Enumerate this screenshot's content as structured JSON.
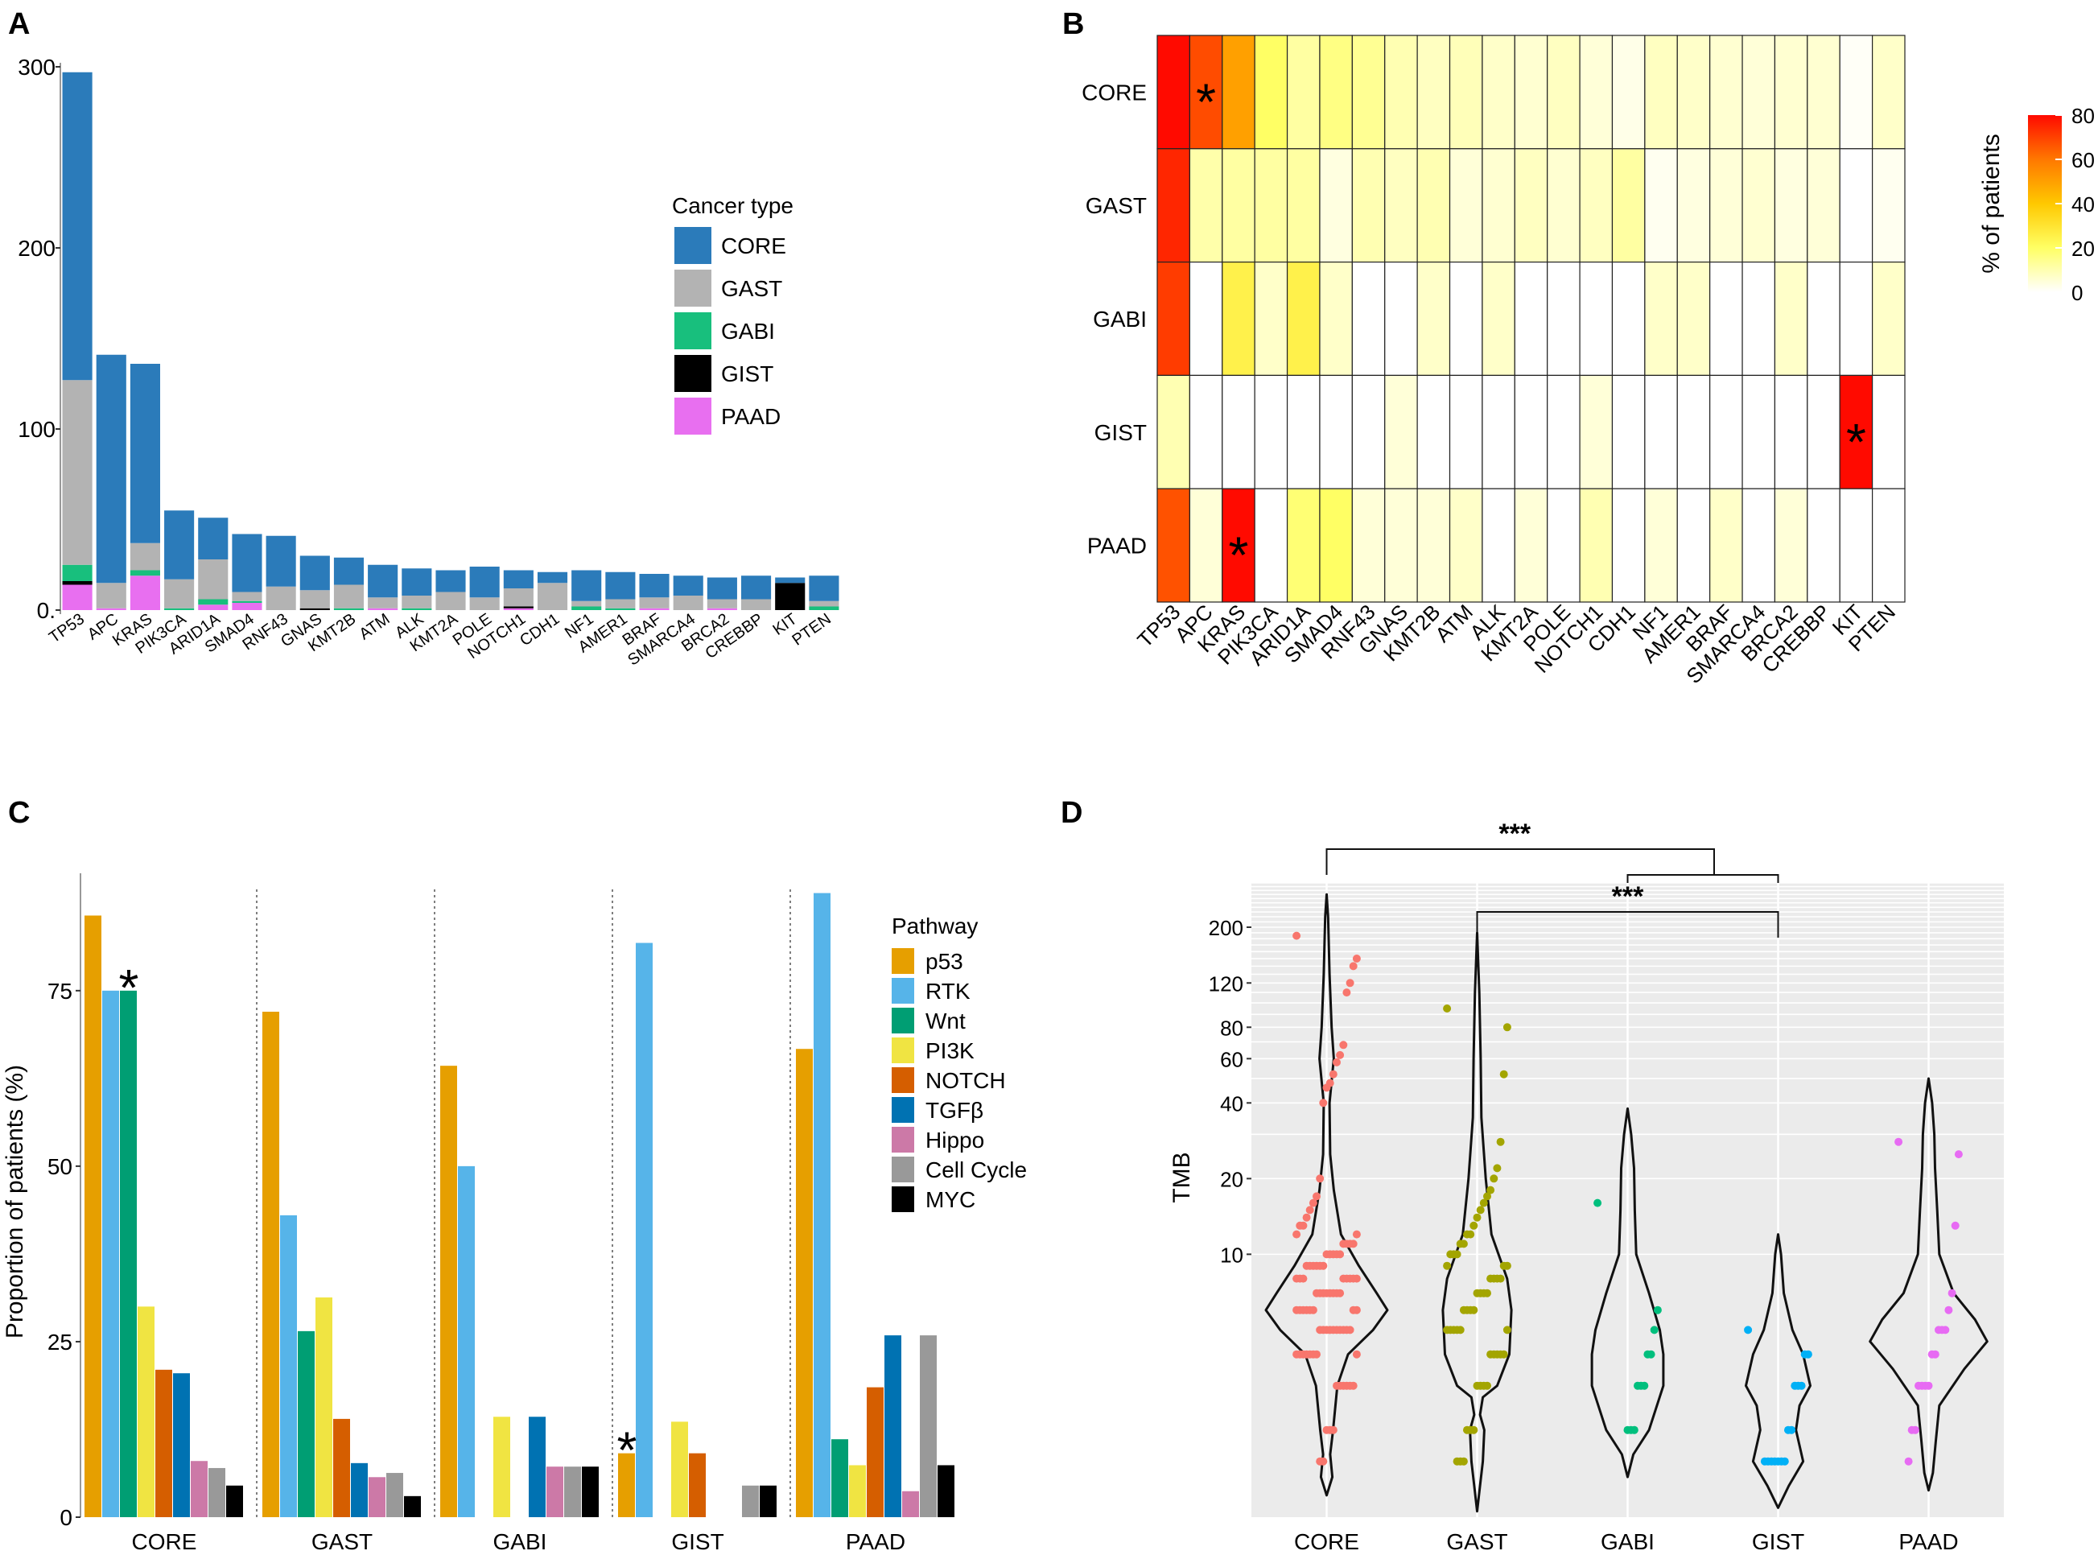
{
  "panels": {
    "a": {
      "label": "A"
    },
    "b": {
      "label": "B"
    },
    "c": {
      "label": "C"
    },
    "d": {
      "label": "D"
    }
  },
  "colors": {
    "CORE": "#2b7bba",
    "GAST": "#b3b3b3",
    "GABI": "#18bf7d",
    "GIST": "#000000",
    "PAAD": "#e86ff0",
    "p53": "#e69f00",
    "RTK": "#56b4e9",
    "Wnt": "#009e73",
    "PI3K": "#f0e442",
    "NOTCH": "#d55e00",
    "TGFb": "#0072b2",
    "Hippo": "#cc79a7",
    "CellCycle": "#999999",
    "MYC": "#000000",
    "violinCORE": "#f8766d",
    "violinGAST": "#a3a500",
    "violinGABI": "#00bf7d",
    "violinGIST": "#00b0f6",
    "violinPAAD": "#e76bf3"
  },
  "chart_data": [
    {
      "id": "A",
      "type": "bar",
      "stacked": true,
      "title": "",
      "categories": [
        "TP53",
        "APC",
        "KRAS",
        "PIK3CA",
        "ARID1A",
        "SMAD4",
        "RNF43",
        "GNAS",
        "KMT2B",
        "ATM",
        "ALK",
        "KMT2A",
        "POLE",
        "NOTCH1",
        "CDH1",
        "NF1",
        "AMER1",
        "BRAF",
        "SMARCA4",
        "BRCA2",
        "CREBBP",
        "KIT",
        "PTEN"
      ],
      "series": [
        {
          "name": "PAAD",
          "values": [
            14,
            1,
            19,
            0,
            3,
            4,
            0,
            0,
            0,
            1,
            0,
            0,
            0,
            1,
            0,
            0,
            0,
            1,
            0,
            1,
            0,
            0,
            0
          ]
        },
        {
          "name": "GIST",
          "values": [
            2,
            0,
            0,
            0,
            0,
            0,
            0,
            1,
            0,
            0,
            0,
            0,
            0,
            1,
            0,
            0,
            0,
            0,
            0,
            0,
            0,
            15,
            0
          ]
        },
        {
          "name": "GABI",
          "values": [
            9,
            0,
            3,
            1,
            3,
            1,
            0,
            0,
            1,
            0,
            1,
            0,
            0,
            0,
            0,
            2,
            1,
            0,
            0,
            0,
            0,
            0,
            2
          ]
        },
        {
          "name": "GAST",
          "values": [
            102,
            14,
            15,
            16,
            22,
            5,
            13,
            10,
            13,
            6,
            7,
            10,
            7,
            10,
            15,
            3,
            5,
            6,
            8,
            5,
            6,
            0,
            3
          ]
        },
        {
          "name": "CORE",
          "values": [
            170,
            126,
            99,
            38,
            23,
            32,
            28,
            19,
            15,
            18,
            15,
            12,
            17,
            10,
            6,
            17,
            15,
            13,
            11,
            12,
            13,
            3,
            14
          ]
        }
      ],
      "xlabel": "",
      "ylabel": "",
      "ylim": [
        0,
        300
      ],
      "yticks": [
        0,
        100,
        200,
        300
      ],
      "ytick_labels": [
        "0.",
        "100",
        "200",
        "300"
      ],
      "grid": false,
      "legend_title": "Cancer type",
      "legend": [
        "CORE",
        "GAST",
        "GABI",
        "GIST",
        "PAAD"
      ],
      "legend_position": "right"
    },
    {
      "id": "B",
      "type": "heatmap",
      "rows": [
        "CORE",
        "GAST",
        "GABI",
        "GIST",
        "PAAD"
      ],
      "columns": [
        "TP53",
        "APC",
        "KRAS",
        "PIK3CA",
        "ARID1A",
        "SMAD4",
        "RNF43",
        "GNAS",
        "KMT2B",
        "ATM",
        "ALK",
        "KMT2A",
        "POLE",
        "NOTCH1",
        "CDH1",
        "NF1",
        "AMER1",
        "BRAF",
        "SMARCA4",
        "BRCA2",
        "CREBBP",
        "KIT",
        "PTEN"
      ],
      "values": [
        [
          85,
          68,
          50,
          20,
          12,
          16,
          14,
          10,
          8,
          9,
          7,
          6,
          8,
          5,
          3,
          8,
          7,
          6,
          5,
          6,
          6,
          1,
          7
        ],
        [
          75,
          11,
          12,
          12,
          12,
          4,
          10,
          8,
          10,
          5,
          6,
          8,
          6,
          8,
          12,
          2,
          4,
          5,
          6,
          4,
          5,
          0,
          2
        ],
        [
          71,
          0,
          25,
          7,
          25,
          7,
          0,
          0,
          7,
          0,
          7,
          0,
          0,
          0,
          0,
          7,
          7,
          0,
          0,
          7,
          0,
          0,
          7
        ],
        [
          10,
          0,
          0,
          0,
          0,
          0,
          0,
          5,
          0,
          0,
          0,
          0,
          0,
          5,
          0,
          0,
          0,
          0,
          0,
          0,
          0,
          85,
          0
        ],
        [
          67,
          5,
          82,
          0,
          18,
          20,
          5,
          5,
          5,
          7,
          0,
          5,
          0,
          10,
          0,
          5,
          0,
          7,
          0,
          5,
          0,
          0,
          0
        ]
      ],
      "asterisks": [
        [
          0,
          1
        ],
        [
          3,
          21
        ],
        [
          4,
          2
        ]
      ],
      "colorbar_label": "% of patients",
      "colorbar_ticks": [
        0,
        20,
        40,
        60,
        80
      ],
      "range": [
        0,
        80
      ]
    },
    {
      "id": "C",
      "type": "bar",
      "groups": [
        "CORE",
        "GAST",
        "GABI",
        "GIST",
        "PAAD"
      ],
      "series_names": [
        "p53",
        "RTK",
        "Wnt",
        "PI3K",
        "NOTCH",
        "TGFβ",
        "Hippo",
        "Cell Cycle",
        "MYC"
      ],
      "values": {
        "CORE": [
          85.7,
          75,
          75,
          30,
          21,
          20.5,
          8,
          7,
          4.5
        ],
        "GAST": [
          72,
          43,
          26.5,
          31.3,
          14,
          7.7,
          5.7,
          6.3,
          3
        ],
        "GABI": [
          64.3,
          50,
          0,
          14.3,
          0,
          14.3,
          7.2,
          7.2,
          7.2
        ],
        "GIST": [
          9.1,
          81.8,
          0,
          13.6,
          9.1,
          0,
          0,
          4.5,
          4.5
        ],
        "PAAD": [
          66.7,
          88.9,
          11.1,
          7.4,
          18.5,
          25.9,
          3.7,
          25.9,
          7.4
        ]
      },
      "asterisks": [
        {
          "group": "CORE",
          "series": "Wnt"
        },
        {
          "group": "GIST",
          "series": "p53"
        }
      ],
      "xlabel": "",
      "ylabel": "Proportion of patients (%)",
      "ylim": [
        0,
        90
      ],
      "yticks": [
        0,
        25,
        50,
        75
      ],
      "legend_title": "Pathway",
      "legend_position": "right"
    },
    {
      "id": "D",
      "type": "scatter",
      "subtype": "violin",
      "categories": [
        "CORE",
        "GAST",
        "GABI",
        "GIST",
        "PAAD"
      ],
      "ylabel": "TMB",
      "yscale": "log",
      "ylim": [
        0.9,
        300
      ],
      "yticks": [
        10,
        20,
        40,
        60,
        80,
        120,
        200
      ],
      "points": {
        "CORE": [
          185,
          150,
          140,
          120,
          110,
          68,
          62,
          58,
          52,
          48,
          46,
          40,
          20,
          17,
          16,
          15,
          14,
          13,
          13,
          12,
          12,
          11,
          11,
          11,
          11,
          10,
          10,
          10,
          10,
          10,
          9,
          9,
          9,
          9,
          9,
          9,
          8,
          8,
          8,
          8,
          8,
          8,
          8,
          8,
          7,
          7,
          7,
          7,
          7,
          7,
          7,
          7,
          6,
          6,
          6,
          6,
          6,
          6,
          6,
          6,
          5,
          5,
          5,
          5,
          5,
          5,
          5,
          5,
          5,
          5,
          4,
          4,
          4,
          4,
          4,
          4,
          4,
          4,
          3,
          3,
          3,
          3,
          3,
          3,
          2,
          2,
          2,
          1.5,
          1.5
        ],
        "GAST": [
          95,
          80,
          52,
          28,
          22,
          20,
          18,
          17,
          16,
          15,
          14,
          13,
          12,
          12,
          11,
          11,
          10,
          10,
          10,
          9,
          9,
          9,
          8,
          8,
          8,
          8,
          7,
          7,
          7,
          7,
          6,
          6,
          6,
          6,
          5,
          5,
          5,
          5,
          5,
          5,
          4,
          4,
          4,
          4,
          4,
          3,
          3,
          3,
          3,
          2,
          2,
          2,
          1.5,
          1.5,
          1.5
        ],
        "GABI": [
          16,
          6,
          5,
          4,
          4,
          3,
          3,
          3,
          2,
          2,
          2
        ],
        "GIST": [
          5,
          4,
          4,
          3,
          3,
          3,
          2,
          2,
          1.5,
          1.5,
          1.5,
          1.5,
          1.5,
          1.5,
          1.5
        ],
        "PAAD": [
          28,
          25,
          13,
          7,
          6,
          5,
          5,
          5,
          4,
          4,
          3,
          3,
          3,
          3,
          2,
          2,
          1.5
        ]
      },
      "significance": [
        {
          "label": "***",
          "left": [
            "CORE"
          ],
          "right": [
            "GABI",
            "GIST"
          ]
        },
        {
          "label": "***",
          "left": [
            "GAST"
          ],
          "right": [
            "GIST"
          ]
        }
      ],
      "background": "#ebebeb"
    }
  ]
}
